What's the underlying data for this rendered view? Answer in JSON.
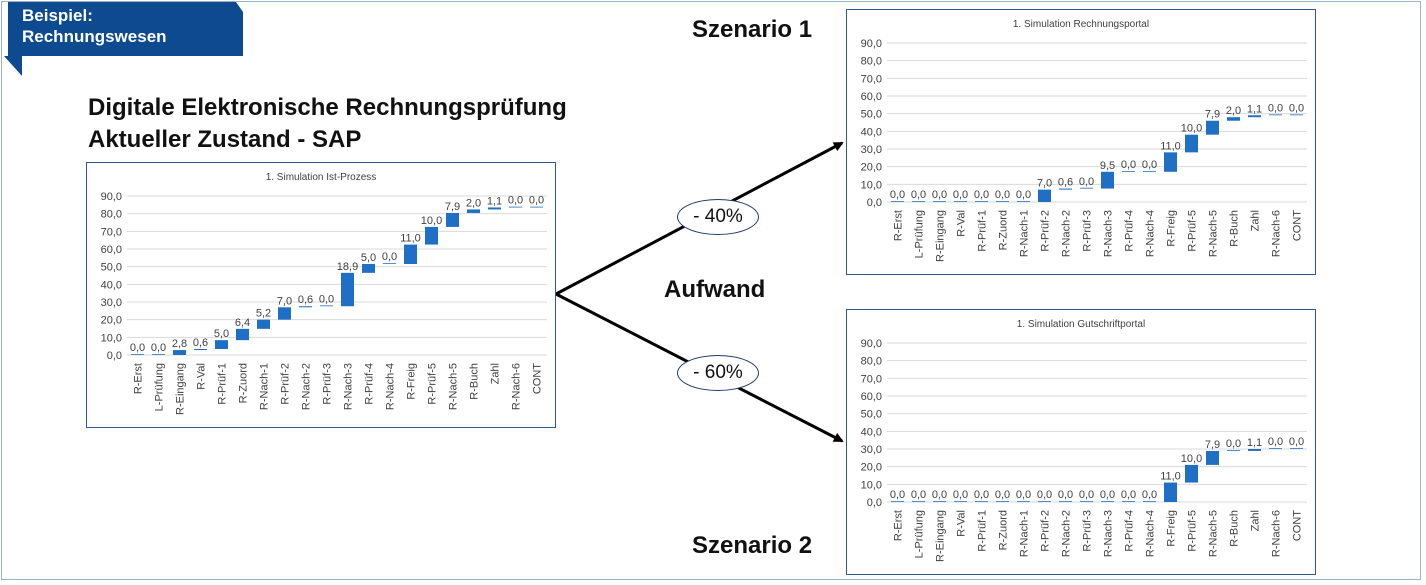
{
  "badge": {
    "line1": "Beispiel:",
    "line2": "Rechnungswesen"
  },
  "heading": {
    "line1": "Digitale Elektronische Rechnungsprüfung",
    "line2": "Aktueller Zustand - SAP"
  },
  "scenario1_label": "Szenario 1",
  "scenario2_label": "Szenario 2",
  "aufwand_label": "Aufwand",
  "reduction1": "- 40%",
  "reduction2": "- 60%",
  "colors": {
    "bar": "#1f6fc5",
    "badge": "#0d4a8f",
    "chart_border": "#2f5597",
    "grid": "#d9d9d9"
  },
  "chart_data": [
    {
      "type": "bar",
      "subtype": "waterfall",
      "title": "1. Simulation Ist-Prozess",
      "categories": [
        "R-Erst",
        "L-Prüfung",
        "R-Eingang",
        "R-Val",
        "R-Prüf-1",
        "R-Zuord",
        "R-Nach-1",
        "R-Prüf-2",
        "R-Nach-2",
        "R-Prüf-3",
        "R-Nach-3",
        "R-Prüf-4",
        "R-Nach-4",
        "R-Freig",
        "R-Prüf-5",
        "R-Nach-5",
        "R-Buch",
        "Zahl",
        "R-Nach-6",
        "CONT"
      ],
      "values": [
        0.0,
        0.0,
        2.8,
        0.6,
        5.0,
        6.4,
        5.2,
        7.0,
        0.6,
        0.0,
        18.9,
        5.0,
        0.0,
        11.0,
        10.0,
        7.9,
        2.0,
        1.1,
        0.0,
        0.0
      ],
      "labels": [
        "0,0",
        "0,0",
        "2,8",
        "0,6",
        "5,0",
        "6,4",
        "5,2",
        "7,0",
        "0,6",
        "0,0",
        "18,9",
        "5,0",
        "0,0",
        "11,0",
        "10,0",
        "7,9",
        "2,0",
        "1,1",
        "0,0",
        "0,0"
      ],
      "ylim": [
        0,
        90
      ],
      "yticks": [
        "0,0",
        "10,0",
        "20,0",
        "30,0",
        "40,0",
        "50,0",
        "60,0",
        "70,0",
        "80,0",
        "90,0"
      ],
      "grid": true
    },
    {
      "type": "bar",
      "subtype": "waterfall",
      "title": "1. Simulation Rechnungsportal",
      "categories": [
        "R-Erst",
        "L-Prüfung",
        "R-Eingang",
        "R-Val",
        "R-Prüf-1",
        "R-Zuord",
        "R-Nach-1",
        "R-Prüf-2",
        "R-Nach-2",
        "R-Prüf-3",
        "R-Nach-3",
        "R-Prüf-4",
        "R-Nach-4",
        "R-Freig",
        "R-Prüf-5",
        "R-Nach-5",
        "R-Buch",
        "Zahl",
        "R-Nach-6",
        "CONT"
      ],
      "values": [
        0.0,
        0.0,
        0.0,
        0.0,
        0.0,
        0.0,
        0.0,
        7.0,
        0.6,
        0.0,
        9.5,
        0.0,
        0.0,
        11.0,
        10.0,
        7.9,
        2.0,
        1.1,
        0.0,
        0.0
      ],
      "labels": [
        "0,0",
        "0,0",
        "0,0",
        "0,0",
        "0,0",
        "0,0",
        "0,0",
        "7,0",
        "0,6",
        "0,0",
        "9,5",
        "0,0",
        "0,0",
        "11,0",
        "10,0",
        "7,9",
        "2,0",
        "1,1",
        "0,0",
        "0,0"
      ],
      "ylim": [
        0,
        90
      ],
      "yticks": [
        "0,0",
        "10,0",
        "20,0",
        "30,0",
        "40,0",
        "50,0",
        "60,0",
        "70,0",
        "80,0",
        "90,0"
      ],
      "grid": true
    },
    {
      "type": "bar",
      "subtype": "waterfall",
      "title": "1. Simulation Gutschriftportal",
      "categories": [
        "R-Erst",
        "L-Prüfung",
        "R-Eingang",
        "R-Val",
        "R-Prüf-1",
        "R-Zuord",
        "R-Nach-1",
        "R-Prüf-2",
        "R-Nach-2",
        "R-Prüf-3",
        "R-Nach-3",
        "R-Prüf-4",
        "R-Nach-4",
        "R-Freig",
        "R-Prüf-5",
        "R-Nach-5",
        "R-Buch",
        "Zahl",
        "R-Nach-6",
        "CONT"
      ],
      "values": [
        0.0,
        0.0,
        0.0,
        0.0,
        0.0,
        0.0,
        0.0,
        0.0,
        0.0,
        0.0,
        0.0,
        0.0,
        0.0,
        11.0,
        10.0,
        7.9,
        0.0,
        1.1,
        0.0,
        0.0
      ],
      "labels": [
        "0,0",
        "0,0",
        "0,0",
        "0,0",
        "0,0",
        "0,0",
        "0,0",
        "0,0",
        "0,0",
        "0,0",
        "0,0",
        "0,0",
        "0,0",
        "11,0",
        "10,0",
        "7,9",
        "0,0",
        "1,1",
        "0,0",
        "0,0"
      ],
      "ylim": [
        0,
        90
      ],
      "yticks": [
        "0,0",
        "10,0",
        "20,0",
        "30,0",
        "40,0",
        "50,0",
        "60,0",
        "70,0",
        "80,0",
        "90,0"
      ],
      "grid": true
    }
  ]
}
